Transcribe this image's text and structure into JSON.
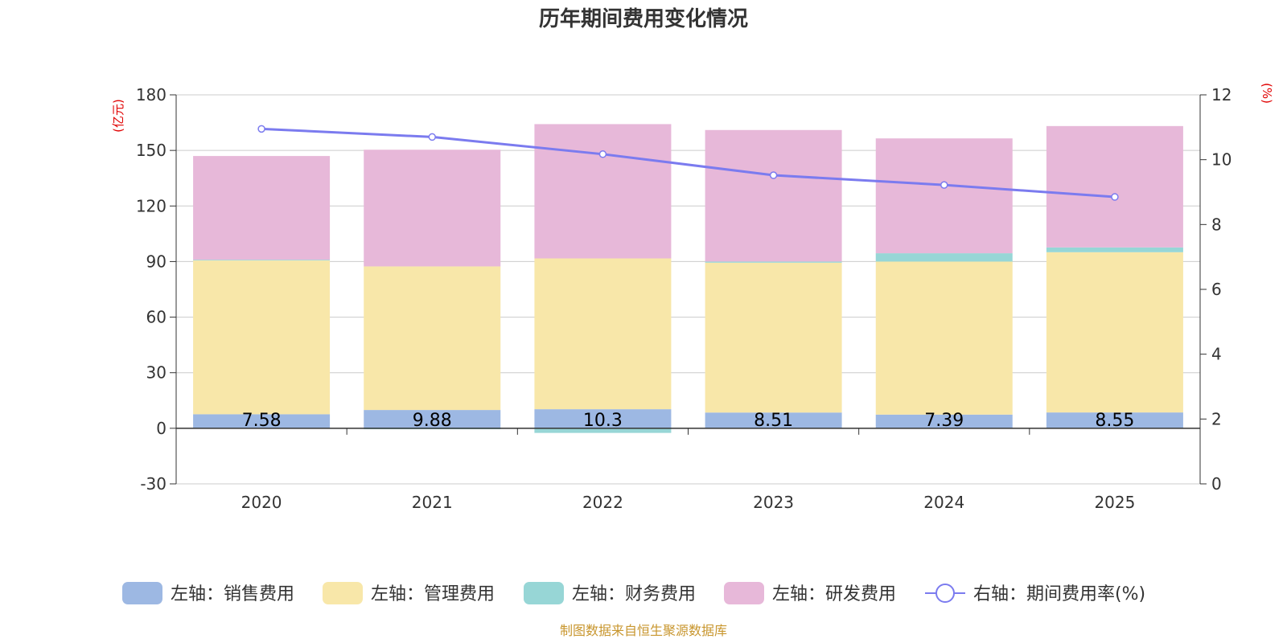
{
  "chart_data": {
    "type": "bar",
    "title": "历年期间费用变化情况",
    "categories": [
      "2020",
      "2021",
      "2022",
      "2023",
      "2024",
      "2025"
    ],
    "stacked": true,
    "series": [
      {
        "name": "左轴：销售费用",
        "axis": "left",
        "color": "#9db8e3",
        "values": [
          7.58,
          9.88,
          10.3,
          8.51,
          7.39,
          8.55
        ]
      },
      {
        "name": "左轴：管理费用",
        "axis": "left",
        "color": "#f8e7a9",
        "values": [
          83.0,
          77.5,
          81.4,
          80.9,
          82.6,
          86.5
        ]
      },
      {
        "name": "左轴：财务费用",
        "axis": "left",
        "color": "#97d6d6",
        "values": [
          0.4,
          -0.5,
          -2.5,
          0.6,
          4.5,
          2.6
        ]
      },
      {
        "name": "左轴：研发费用",
        "axis": "left",
        "color": "#e7b8d9",
        "values": [
          56.0,
          63.0,
          72.5,
          71.0,
          62.0,
          65.5
        ]
      },
      {
        "name": "右轴：期间费用率(%)",
        "axis": "right",
        "type": "line",
        "color": "#7b7bef",
        "values": [
          10.95,
          10.7,
          10.17,
          9.52,
          9.22,
          8.85
        ]
      }
    ],
    "data_labels": [
      "7.58",
      "9.88",
      "10.3",
      "8.51",
      "7.39",
      "8.55"
    ],
    "left_axis": {
      "unit": "(亿元)",
      "min": -30,
      "max": 180,
      "ticks": [
        "-30",
        "0",
        "30",
        "60",
        "90",
        "120",
        "150",
        "180"
      ]
    },
    "right_axis": {
      "unit": "(%)",
      "min": 0,
      "max": 12,
      "ticks": [
        "0",
        "2",
        "4",
        "6",
        "8",
        "10",
        "12"
      ]
    },
    "legend_position": "bottom",
    "grid": true
  },
  "source": "制图数据来自恒生聚源数据库"
}
